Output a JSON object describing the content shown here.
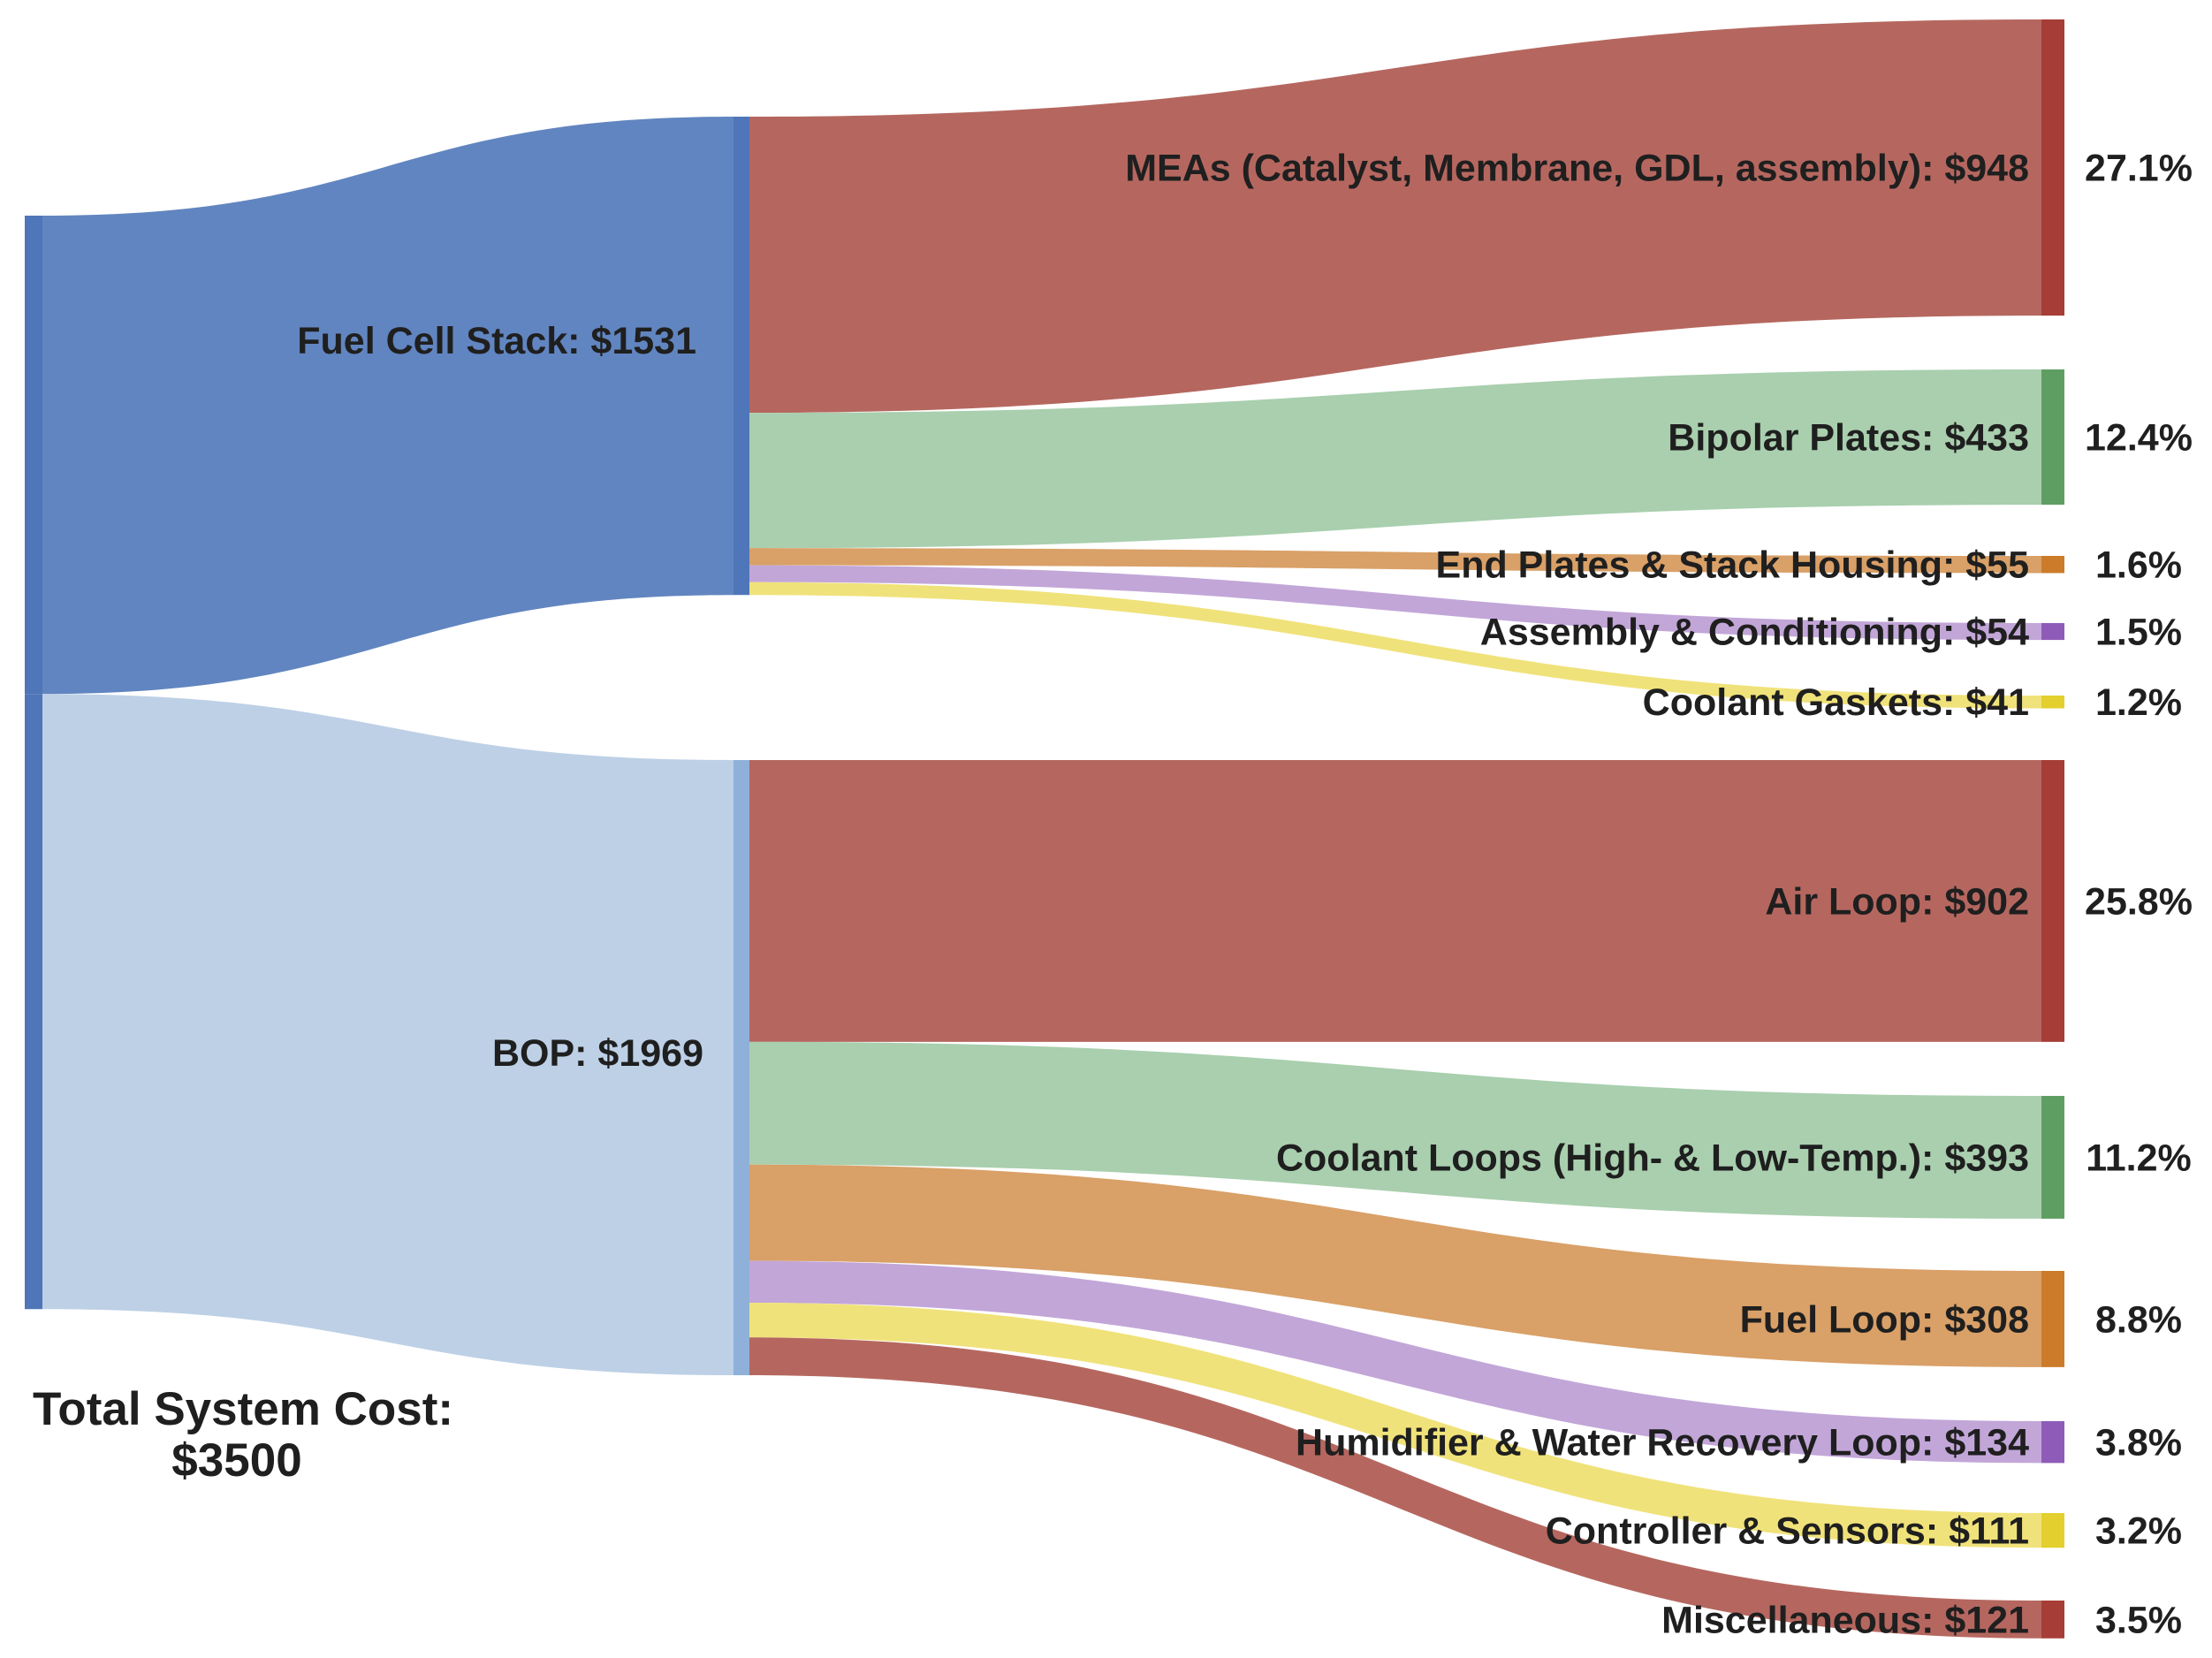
{
  "chart_data": {
    "type": "sankey",
    "units": "$",
    "source": {
      "label": "Total System Cost:",
      "value_label": "$3500",
      "value": 3500
    },
    "groups": [
      {
        "id": "stack",
        "label": "Fuel Cell Stack: $1531",
        "value": 1531,
        "color": "#6185c0",
        "bar_color": "#4f76b8",
        "children": [
          {
            "id": "mea",
            "label": "MEAs (Catalyst, Membrane, GDL, assembly): $948",
            "value": 948,
            "percent": "27.1%",
            "color": "#b5675f",
            "bar_color": "#a63d36"
          },
          {
            "id": "bipolar",
            "label": "Bipolar Plates: $433",
            "value": 433,
            "percent": "12.4%",
            "color": "#a9cfae",
            "bar_color": "#5f9e62"
          },
          {
            "id": "endplates",
            "label": "End Plates & Stack Housing: $55",
            "value": 55,
            "percent": "1.6%",
            "color": "#d9a067",
            "bar_color": "#cc7b2b"
          },
          {
            "id": "assembly",
            "label": "Assembly & Conditioning: $54",
            "value": 54,
            "percent": "1.5%",
            "color": "#c2a6d8",
            "bar_color": "#8e5cb8"
          },
          {
            "id": "gaskets",
            "label": "Coolant Gaskets: $41",
            "value": 41,
            "percent": "1.2%",
            "color": "#f0e27a",
            "bar_color": "#e3cf2e"
          }
        ]
      },
      {
        "id": "bop",
        "label": "BOP: $1969",
        "value": 1969,
        "color": "#bdd0e6",
        "bar_color": "#8fb0d9",
        "children": [
          {
            "id": "air",
            "label": "Air Loop: $902",
            "value": 902,
            "percent": "25.8%",
            "color": "#b5675f",
            "bar_color": "#a63d36"
          },
          {
            "id": "coolant",
            "label": "Coolant Loops (High- & Low-Temp.): $393",
            "value": 393,
            "percent": "11.2%",
            "color": "#a9cfae",
            "bar_color": "#5f9e62"
          },
          {
            "id": "fuel",
            "label": "Fuel Loop: $308",
            "value": 308,
            "percent": "8.8%",
            "color": "#d9a067",
            "bar_color": "#cc7b2b"
          },
          {
            "id": "humid",
            "label": "Humidifier & Water Recovery Loop: $134",
            "value": 134,
            "percent": "3.8%",
            "color": "#c2a6d8",
            "bar_color": "#8e5cb8"
          },
          {
            "id": "ctrl",
            "label": "Controller & Sensors: $111",
            "value": 111,
            "percent": "3.2%",
            "color": "#f0e27a",
            "bar_color": "#e3cf2e"
          },
          {
            "id": "misc",
            "label": "Miscellaneous: $121",
            "value": 121,
            "percent": "3.5%",
            "color": "#b5675f",
            "bar_color": "#a63d36"
          }
        ]
      }
    ]
  }
}
